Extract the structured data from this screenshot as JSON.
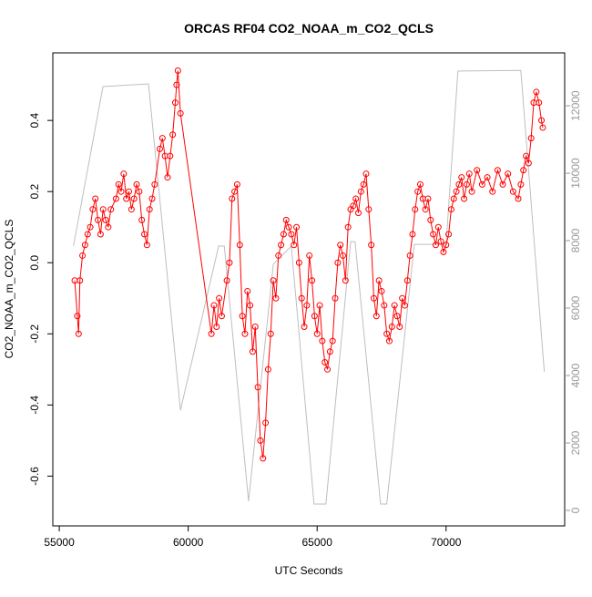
{
  "chart_data": {
    "type": "line",
    "title": "ORCAS RF04 CO2_NOAA_m_CO2_QCLS",
    "x_label": "UTC Seconds",
    "y_label": "CO2_NOAA_m_CO2_QCLS",
    "xlim": [
      54750,
      74600
    ],
    "xticks": [
      55000,
      60000,
      65000,
      70000
    ],
    "ylim": [
      -0.74,
      0.59
    ],
    "yticks": [
      -0.6,
      -0.4,
      -0.2,
      {
        "value": 0,
        "label": "0.0"
      },
      0.2,
      0.4
    ],
    "y2lim": [
      -460,
      13570
    ],
    "y2ticks": [
      0,
      2000,
      4000,
      6000,
      8000,
      10000,
      12000
    ],
    "series": [
      {
        "color": "#bebebe",
        "axis": "y2",
        "markers": false,
        "x": [
          55550,
          56694,
          58460,
          59700,
          61180,
          61400,
          62340,
          63300,
          64000,
          64880,
          65340,
          66300,
          66470,
          67460,
          67700,
          68770,
          70000,
          70460,
          72900,
          73810
        ],
        "values": [
          7840,
          12570,
          12650,
          2970,
          7840,
          7840,
          270,
          7300,
          7840,
          190,
          190,
          7970,
          7970,
          190,
          190,
          7890,
          7890,
          13030,
          13050,
          4110
        ]
      },
      {
        "color": "#ff0000",
        "markers": true,
        "x": [
          55600,
          55700,
          55750,
          55800,
          55900,
          56000,
          56100,
          56200,
          56300,
          56400,
          56500,
          56600,
          56700,
          56800,
          56900,
          57000,
          57200,
          57300,
          57400,
          57500,
          57600,
          57700,
          57800,
          57900,
          58000,
          58100,
          58200,
          58300,
          58400,
          58500,
          58600,
          58700,
          58900,
          59000,
          59100,
          59200,
          59300,
          59400,
          59500,
          59550,
          59600,
          59700,
          60900,
          61000,
          61100,
          61200,
          61300,
          61500,
          61600,
          61700,
          61800,
          61900,
          62000,
          62100,
          62200,
          62300,
          62400,
          62500,
          62600,
          62700,
          62800,
          62900,
          63000,
          63100,
          63200,
          63300,
          63400,
          63500,
          63600,
          63700,
          63800,
          63900,
          64000,
          64100,
          64200,
          64300,
          64400,
          64500,
          64600,
          64700,
          64800,
          64900,
          65000,
          65100,
          65200,
          65300,
          65400,
          65500,
          65600,
          65700,
          65800,
          65900,
          66000,
          66100,
          66200,
          66300,
          66400,
          66500,
          66600,
          66700,
          66800,
          66900,
          67000,
          67100,
          67200,
          67300,
          67400,
          67500,
          67600,
          67700,
          67800,
          67900,
          68000,
          68100,
          68200,
          68300,
          68400,
          68500,
          68600,
          68700,
          68800,
          68900,
          69000,
          69100,
          69200,
          69300,
          69400,
          69500,
          69600,
          69700,
          69800,
          69900,
          70000,
          70100,
          70200,
          70300,
          70400,
          70500,
          70600,
          70700,
          70800,
          70900,
          71000,
          71200,
          71400,
          71600,
          71800,
          72000,
          72200,
          72400,
          72600,
          72800,
          72900,
          73000,
          73100,
          73200,
          73300,
          73400,
          73500,
          73600,
          73700,
          73750
        ],
        "values": [
          -0.05,
          -0.15,
          -0.2,
          -0.05,
          0.02,
          0.05,
          0.08,
          0.1,
          0.15,
          0.18,
          0.12,
          0.08,
          0.15,
          0.12,
          0.1,
          0.15,
          0.18,
          0.22,
          0.2,
          0.25,
          0.18,
          0.2,
          0.15,
          0.18,
          0.22,
          0.2,
          0.12,
          0.08,
          0.05,
          0.15,
          0.18,
          0.22,
          0.32,
          0.35,
          0.3,
          0.24,
          0.3,
          0.36,
          0.45,
          0.5,
          0.54,
          0.42,
          -0.2,
          -0.12,
          -0.18,
          -0.1,
          -0.15,
          -0.05,
          0.0,
          0.18,
          0.2,
          0.22,
          0.05,
          -0.15,
          -0.2,
          -0.08,
          -0.12,
          -0.25,
          -0.18,
          -0.35,
          -0.5,
          -0.55,
          -0.45,
          -0.3,
          -0.2,
          -0.05,
          -0.1,
          0.02,
          0.05,
          0.08,
          0.12,
          0.1,
          0.08,
          0.05,
          0.1,
          0.0,
          -0.1,
          -0.18,
          -0.12,
          0.02,
          -0.05,
          -0.15,
          -0.2,
          -0.12,
          -0.22,
          -0.28,
          -0.3,
          -0.25,
          -0.22,
          -0.1,
          0.0,
          0.05,
          0.02,
          -0.05,
          0.1,
          0.15,
          0.16,
          0.18,
          0.14,
          0.2,
          0.22,
          0.25,
          0.15,
          0.05,
          -0.1,
          -0.15,
          -0.05,
          -0.08,
          -0.12,
          -0.2,
          -0.22,
          -0.18,
          -0.12,
          -0.15,
          -0.18,
          -0.1,
          -0.12,
          -0.05,
          0.02,
          0.08,
          0.15,
          0.2,
          0.22,
          0.18,
          0.15,
          0.18,
          0.12,
          0.08,
          0.05,
          0.1,
          0.06,
          0.03,
          0.05,
          0.08,
          0.15,
          0.18,
          0.2,
          0.22,
          0.24,
          0.18,
          0.22,
          0.25,
          0.2,
          0.26,
          0.22,
          0.24,
          0.2,
          0.26,
          0.22,
          0.25,
          0.2,
          0.18,
          0.22,
          0.26,
          0.3,
          0.28,
          0.35,
          0.45,
          0.48,
          0.45,
          0.4,
          0.38
        ]
      }
    ]
  }
}
